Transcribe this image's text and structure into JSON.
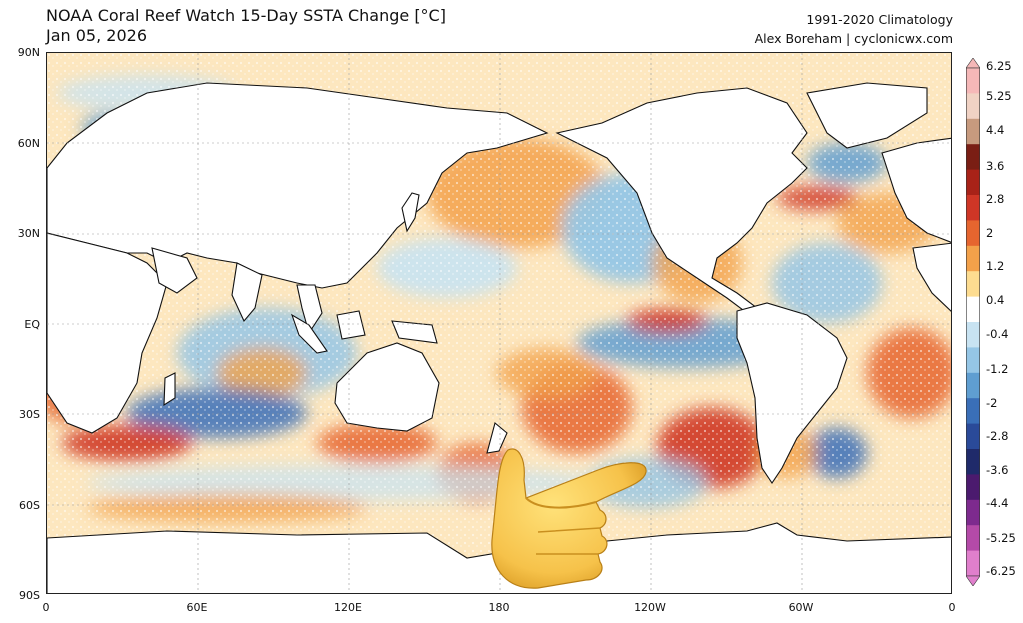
{
  "header": {
    "title": "NOAA Coral Reef Watch 15-Day SSTA Change [°C]",
    "date": "Jan 05, 2026",
    "climatology": "1991-2020 Climatology",
    "credit": "Alex Boreham | cyclonicwx.com"
  },
  "axes": {
    "lat_labels": [
      "90N",
      "60N",
      "30N",
      "EQ",
      "30S",
      "60S",
      "90S"
    ],
    "lon_labels": [
      "0",
      "60E",
      "120E",
      "180",
      "120W",
      "60W",
      "0"
    ]
  },
  "colorbar": {
    "labels": [
      "6.25",
      "5.25",
      "4.4",
      "3.6",
      "2.8",
      "2",
      "1.2",
      "0.4",
      "-0.4",
      "-1.2",
      "-2",
      "-2.8",
      "-3.6",
      "-4.4",
      "-5.25",
      "-6.25"
    ],
    "colors": [
      "#f5b8b8",
      "#f0d2c4",
      "#c79a7e",
      "#7a1e14",
      "#a82218",
      "#cf3626",
      "#e6652f",
      "#f3a14a",
      "#fddc90",
      "#ffffff",
      "#c8e3f2",
      "#95c6e6",
      "#5f9ed1",
      "#3a6fb8",
      "#2a4a99",
      "#1f2a6a",
      "#4b1a6e",
      "#7d2a8e",
      "#b44aa8",
      "#e07fcc"
    ]
  },
  "overlay": {
    "icon": "pointing-hand-icon"
  },
  "palette": {
    "warm": "#f3a14a",
    "hot": "#cf3626",
    "cool": "#95c6e6",
    "cold": "#3a6fb8",
    "land": "#ffffff",
    "coast": "#111111"
  }
}
